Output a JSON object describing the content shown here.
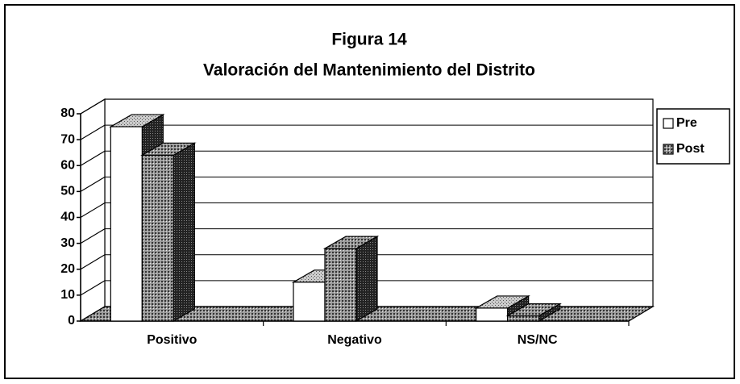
{
  "chart_data": {
    "type": "bar3d",
    "title": "Figura 14",
    "subtitle": "Valoración del Mantenimiento del Distrito",
    "categories": [
      "Positivo",
      "Negativo",
      "NS/NC"
    ],
    "series": [
      {
        "name": "Pre",
        "color": "#ffffff",
        "values": [
          75,
          15,
          5
        ]
      },
      {
        "name": "Post",
        "color": "#7a7a7a",
        "values": [
          64,
          28,
          2
        ]
      }
    ],
    "ylim": [
      0,
      80
    ],
    "yticks": [
      0,
      10,
      20,
      30,
      40,
      50,
      60,
      70,
      80
    ],
    "grid": true,
    "legend": "right"
  }
}
